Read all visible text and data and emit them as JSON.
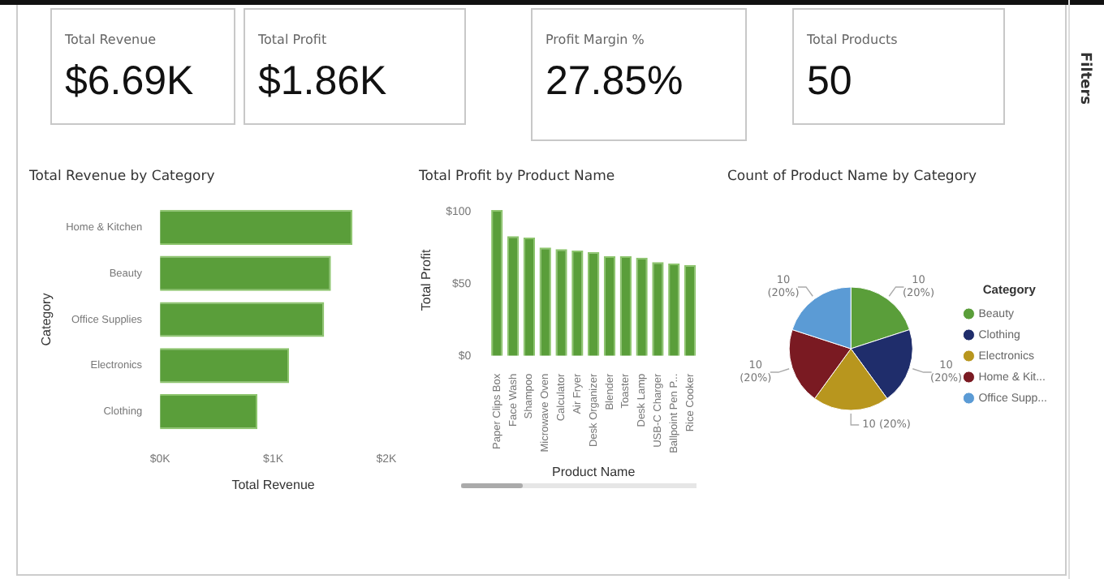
{
  "chart_data": [
    {
      "type": "other",
      "title": "Total Revenue",
      "annotations": [
        "$6.69K"
      ]
    },
    {
      "type": "other",
      "title": "Total Profit",
      "annotations": [
        "$1.86K"
      ]
    },
    {
      "type": "other",
      "title": "Profit Margin %",
      "annotations": [
        "27.85%"
      ]
    },
    {
      "type": "other",
      "title": "Total Products",
      "annotations": [
        "50"
      ]
    },
    {
      "type": "other",
      "title": "Filters"
    },
    {
      "type": "bar",
      "orientation": "horizontal",
      "title": "Total Revenue by Category",
      "xlabel": "Total Revenue",
      "ylabel": "Category",
      "categories": [
        "Home & Kitchen",
        "Beauty",
        "Office Supplies",
        "Electronics",
        "Clothing"
      ],
      "values": [
        1.7,
        1.51,
        1.45,
        1.14,
        0.86
      ],
      "color": "#5a9e3a",
      "xlim": [
        0,
        2
      ],
      "xticks": [
        {
          "value": 0,
          "label": "$0K"
        },
        {
          "value": 1,
          "label": "$1K"
        },
        {
          "value": 2,
          "label": "$2K"
        }
      ]
    },
    {
      "type": "bar",
      "title": "Total Profit by Product Name",
      "xlabel": "Product Name",
      "ylabel": "Total Profit",
      "categories": [
        "Paper Clips Box",
        "Face Wash",
        "Shampoo",
        "Microwave Oven",
        "Calculator",
        "Air Fryer",
        "Desk Organizer",
        "Blender",
        "Toaster",
        "Desk Lamp",
        "USB-C Charger",
        "Ballpoint Pen P...",
        "Rice Cooker"
      ],
      "values": [
        101,
        83,
        82,
        75,
        74,
        73,
        72,
        69,
        69,
        68,
        65,
        64,
        63
      ],
      "color": "#5a9e3a",
      "ylim": [
        0,
        105
      ],
      "yticks": [
        {
          "value": 0,
          "label": "$0"
        },
        {
          "value": 50,
          "label": "$50"
        },
        {
          "value": 100,
          "label": "$100"
        }
      ]
    },
    {
      "type": "pie",
      "title": "Count of Product Name by Category",
      "legend_title": "Category",
      "legend": "right",
      "categories": [
        "Beauty",
        "Clothing",
        "Electronics",
        "Home & Kit...",
        "Office Supp..."
      ],
      "values": [
        10,
        10,
        10,
        10,
        10
      ],
      "colors": [
        "#5a9e3a",
        "#1f2d6b",
        "#b8961e",
        "#7a1a22",
        "#5b9bd5"
      ],
      "value_labels": [
        "10 (20%)",
        "10 (20%)",
        "10 (20%)",
        "10 (20%)",
        "10 (20%)"
      ]
    }
  ]
}
